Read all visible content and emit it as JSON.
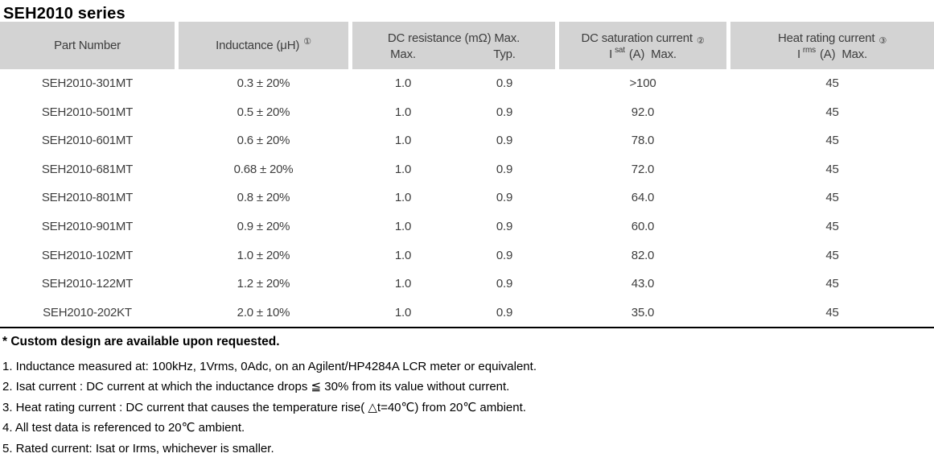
{
  "page_title": "SEH2010 series",
  "colors": {
    "header_bg": "#d3d3d3",
    "table_text": "#3d3d3d",
    "notes_text": "#000000",
    "rule": "#000000"
  },
  "table": {
    "header": {
      "part_number": "Part Number",
      "inductance_label": "Inductance (μH)",
      "inductance_ref": "①",
      "dc_resistance_group": "DC resistance (mΩ) Max.",
      "dc_resistance_max": "Max.",
      "dc_resistance_typ": "Typ.",
      "saturation_group": "DC saturation current",
      "saturation_ref": "②",
      "saturation_symbol": "I",
      "saturation_subscript": "sat",
      "saturation_units": "(A)  Max.",
      "heat_group": "Heat rating current",
      "heat_ref": "③",
      "heat_symbol": "I",
      "heat_subscript": "rms",
      "heat_units": "(A)  Max."
    },
    "rows": [
      {
        "part": "SEH2010-301MT",
        "inductance": "0.3 ± 20%",
        "dcr_max": "1.0",
        "dcr_typ": "0.9",
        "isat": ">100",
        "irms": "45"
      },
      {
        "part": "SEH2010-501MT",
        "inductance": "0.5 ± 20%",
        "dcr_max": "1.0",
        "dcr_typ": "0.9",
        "isat": "92.0",
        "irms": "45"
      },
      {
        "part": "SEH2010-601MT",
        "inductance": "0.6 ± 20%",
        "dcr_max": "1.0",
        "dcr_typ": "0.9",
        "isat": "78.0",
        "irms": "45"
      },
      {
        "part": "SEH2010-681MT",
        "inductance": "0.68 ± 20%",
        "dcr_max": "1.0",
        "dcr_typ": "0.9",
        "isat": "72.0",
        "irms": "45"
      },
      {
        "part": "SEH2010-801MT",
        "inductance": "0.8 ± 20%",
        "dcr_max": "1.0",
        "dcr_typ": "0.9",
        "isat": "64.0",
        "irms": "45"
      },
      {
        "part": "SEH2010-901MT",
        "inductance": "0.9 ± 20%",
        "dcr_max": "1.0",
        "dcr_typ": "0.9",
        "isat": "60.0",
        "irms": "45"
      },
      {
        "part": "SEH2010-102MT",
        "inductance": "1.0 ± 20%",
        "dcr_max": "1.0",
        "dcr_typ": "0.9",
        "isat": "82.0",
        "irms": "45"
      },
      {
        "part": "SEH2010-122MT",
        "inductance": "1.2 ± 20%",
        "dcr_max": "1.0",
        "dcr_typ": "0.9",
        "isat": "43.0",
        "irms": "45"
      },
      {
        "part": "SEH2010-202KT",
        "inductance": "2.0 ± 10%",
        "dcr_max": "1.0",
        "dcr_typ": "0.9",
        "isat": "35.0",
        "irms": "45"
      }
    ]
  },
  "footnotes": {
    "custom_note": "* Custom design are available upon requested.",
    "items": [
      "1. Inductance measured at: 100kHz, 1Vrms, 0Adc, on an Agilent/HP4284A LCR meter or equivalent.",
      "2. Isat current : DC current at which the inductance drops ≦ 30% from its value without current.",
      "3. Heat rating current : DC current that causes the temperature rise( △t=40℃) from 20℃ ambient.",
      "4. All test data is referenced to 20℃ ambient.",
      "5. Rated current: Isat or Irms, whichever is smaller."
    ]
  }
}
